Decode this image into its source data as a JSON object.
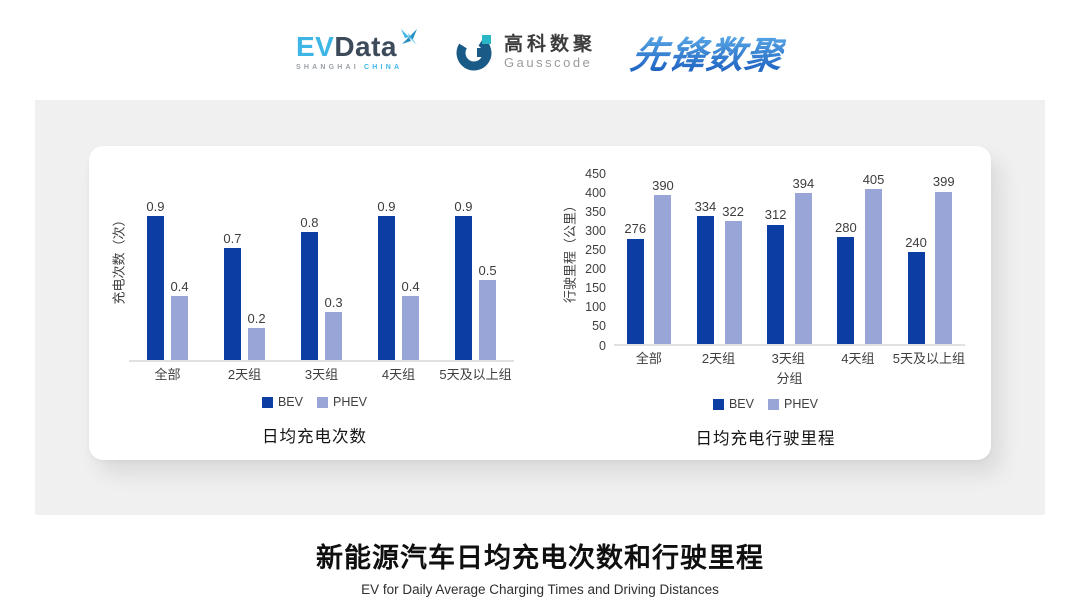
{
  "header": {
    "evdata": {
      "wordmark_ev": "EV",
      "wordmark_data": "Data",
      "tagline_left": "SHANGHAI",
      "tagline_right": "CHINA"
    },
    "gausscode": {
      "name_cn": "高科数聚",
      "name_en": "Gausscode"
    },
    "pioneer": {
      "name_cn": "先锋数聚"
    }
  },
  "colors": {
    "bev": "#0b3da3",
    "phev": "#99a4d7",
    "panel_background": "#f0f0f0",
    "evdata_blue": "#3db6e6",
    "evdata_dark": "#3d4a5a",
    "gausscode_navy": "#1a5a87",
    "gausscode_teal": "#29b7c8",
    "pioneer_blue_light": "#5fb0ea",
    "pioneer_blue_dark": "#1c5fc0"
  },
  "chart_data": [
    {
      "type": "bar",
      "title": "日均充电次数",
      "ylabel": "充电次数（次）",
      "xlabel": "",
      "categories": [
        "全部",
        "2天组",
        "3天组",
        "4天组",
        "5天及以上组"
      ],
      "series": [
        {
          "name": "BEV",
          "color": "#0b3da3",
          "values": [
            0.9,
            0.7,
            0.8,
            0.9,
            0.9
          ]
        },
        {
          "name": "PHEV",
          "color": "#99a4d7",
          "values": [
            0.4,
            0.2,
            0.3,
            0.4,
            0.5
          ]
        }
      ],
      "value_labels": true,
      "grid": false,
      "y_axis_visible": false,
      "legend_position": "bottom"
    },
    {
      "type": "bar",
      "title": "日均充电行驶里程",
      "ylabel": "行驶里程（公里）",
      "xlabel": "分组",
      "categories": [
        "全部",
        "2天组",
        "3天组",
        "4天组",
        "5天及以上组"
      ],
      "series": [
        {
          "name": "BEV",
          "color": "#0b3da3",
          "values": [
            276,
            334,
            312,
            280,
            240
          ]
        },
        {
          "name": "PHEV",
          "color": "#99a4d7",
          "values": [
            390,
            322,
            394,
            405,
            399
          ]
        }
      ],
      "ylim": [
        0,
        450
      ],
      "yticks": [
        0,
        50,
        100,
        150,
        200,
        250,
        300,
        350,
        400,
        450
      ],
      "value_labels": true,
      "grid": false,
      "legend_position": "bottom"
    }
  ],
  "footer": {
    "title": "新能源汽车日均充电次数和行驶里程",
    "subtitle": "EV for Daily Average Charging Times and Driving Distances"
  }
}
